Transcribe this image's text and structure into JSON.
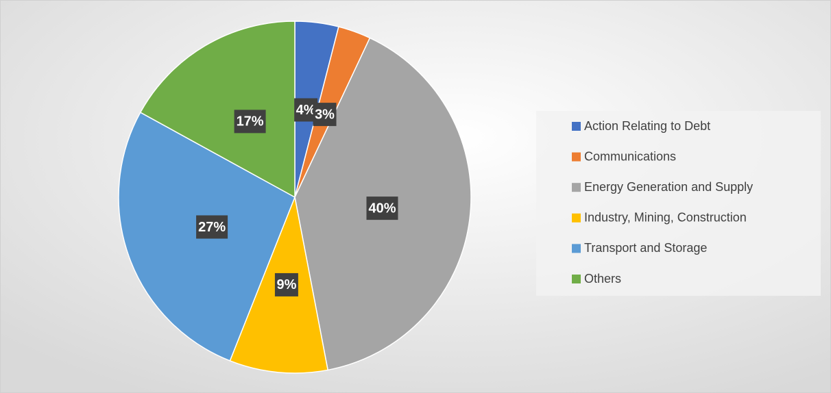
{
  "chart_data": {
    "type": "pie",
    "categories": [
      "Action Relating to Debt",
      "Communications",
      "Energy Generation and Supply",
      "Industry, Mining, Construction",
      "Transport and Storage",
      "Others"
    ],
    "values": [
      4,
      3,
      40,
      9,
      27,
      17
    ],
    "value_labels": [
      "4%",
      "3%",
      "40%",
      "9%",
      "27%",
      "17%"
    ],
    "colors": [
      "#4472c4",
      "#ed7d31",
      "#a5a5a5",
      "#ffc000",
      "#5b9bd5",
      "#70ad47"
    ],
    "legend": "right"
  }
}
